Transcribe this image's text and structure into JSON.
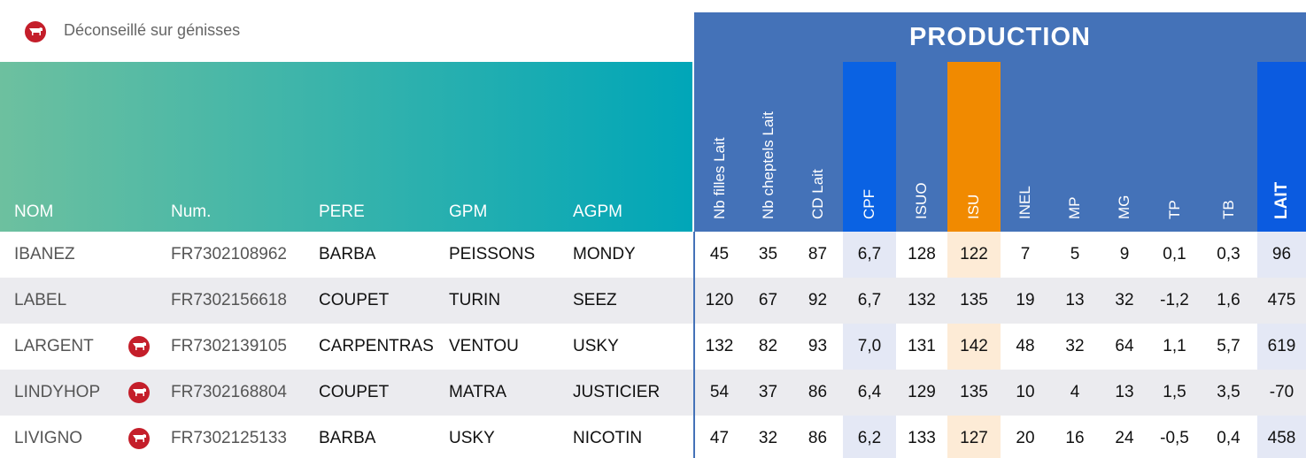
{
  "legend": "Déconseillé sur génisses",
  "production_title": "PRODUCTION",
  "id_headers": [
    "NOM",
    "Num.",
    "PERE",
    "GPM",
    "AGPM"
  ],
  "value_headers": [
    "Nb filles Lait",
    "Nb cheptels Lait",
    "CD Lait",
    "CPF",
    "ISUO",
    "ISU",
    "INEL",
    "MP",
    "MG",
    "TP",
    "TB",
    "LAIT"
  ],
  "rows": [
    {
      "id": [
        "IBANEZ",
        "FR7302108962",
        "BARBA",
        "PEISSONS",
        "MONDY"
      ],
      "warning": false,
      "values": [
        "45",
        "35",
        "87",
        "6,7",
        "128",
        "122",
        "7",
        "5",
        "9",
        "0,1",
        "0,3",
        "96"
      ]
    },
    {
      "id": [
        "LABEL",
        "FR7302156618",
        "COUPET",
        "TURIN",
        "SEEZ"
      ],
      "warning": false,
      "values": [
        "120",
        "67",
        "92",
        "6,7",
        "132",
        "135",
        "19",
        "13",
        "32",
        "-1,2",
        "1,6",
        "475"
      ]
    },
    {
      "id": [
        "LARGENT",
        "FR7302139105",
        "CARPENTRAS",
        "VENTOU",
        "USKY"
      ],
      "warning": true,
      "values": [
        "132",
        "82",
        "93",
        "7,0",
        "131",
        "142",
        "48",
        "32",
        "64",
        "1,1",
        "5,7",
        "619"
      ]
    },
    {
      "id": [
        "LINDYHOP",
        "FR7302168804",
        "COUPET",
        "MATRA",
        "JUSTICIER"
      ],
      "warning": true,
      "values": [
        "54",
        "37",
        "86",
        "6,4",
        "129",
        "135",
        "10",
        "4",
        "13",
        "1,5",
        "3,5",
        "-70"
      ]
    },
    {
      "id": [
        "LIVIGNO",
        "FR7302125133",
        "BARBA",
        "USKY",
        "NICOTIN"
      ],
      "warning": true,
      "values": [
        "47",
        "32",
        "86",
        "6,2",
        "133",
        "127",
        "20",
        "16",
        "24",
        "-0,5",
        "0,4",
        "458"
      ]
    }
  ]
}
